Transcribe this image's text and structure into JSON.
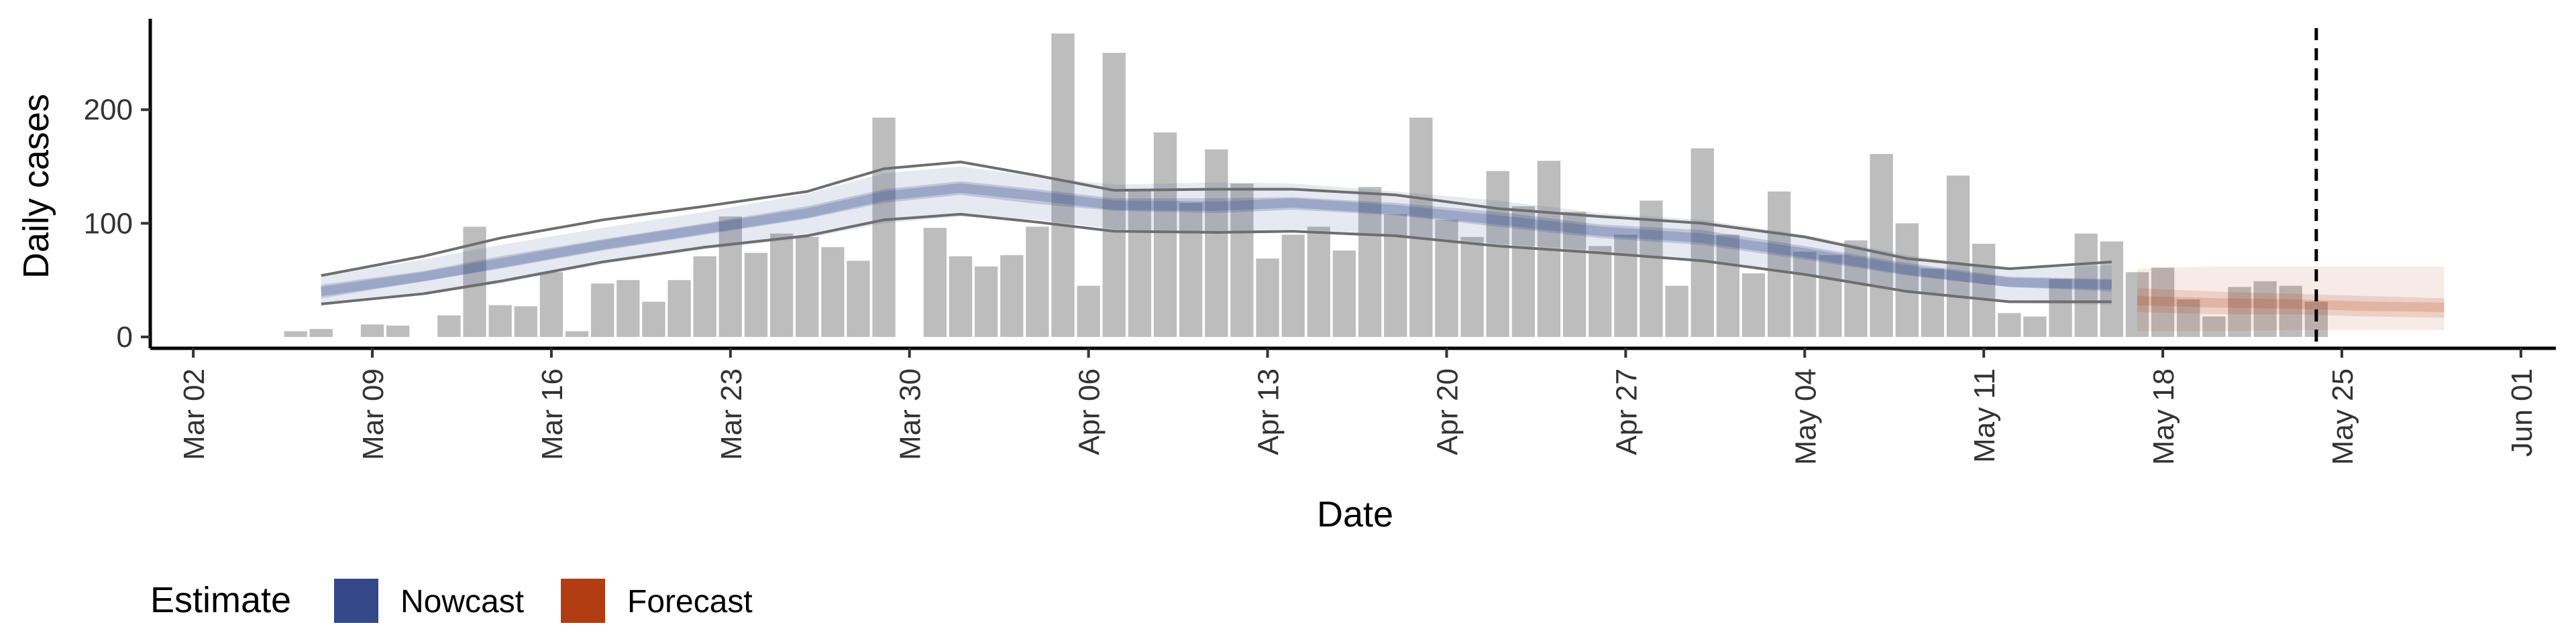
{
  "chart_data": {
    "type": "bar",
    "xlabel": "Date",
    "ylabel": "Daily cases",
    "x_axis_start": "2020-03-02",
    "xlim": [
      "2020-03-01",
      "2020-06-02"
    ],
    "ylim": [
      -10,
      280
    ],
    "x_ticks": [
      "Mar 02",
      "Mar 09",
      "Mar 16",
      "Mar 23",
      "Mar 30",
      "Apr 06",
      "Apr 13",
      "Apr 20",
      "Apr 27",
      "May 04",
      "May 11",
      "May 18",
      "May 25",
      "Jun 01"
    ],
    "y_ticks": [
      "0",
      "100",
      "200"
    ],
    "y_tick_values": [
      0,
      100,
      200
    ],
    "cutoff_date": "2020-05-24",
    "legend": {
      "title": "Estimate",
      "position": "bottom-left",
      "items": [
        {
          "label": "Nowcast",
          "color": "#35488a"
        },
        {
          "label": "Forecast",
          "color": "#b33d12"
        }
      ]
    },
    "colors": {
      "bars": "#bdbdbd",
      "nowcast": "#35488a",
      "forecast": "#b33d12",
      "reference_lines": "#6e6e6e",
      "cutoff_line": "#000000"
    },
    "bars": {
      "start_date": "2020-03-06",
      "values": [
        5,
        7,
        0,
        11,
        10,
        0,
        19,
        97,
        28,
        27,
        57,
        5,
        47,
        50,
        31,
        50,
        71,
        106,
        74,
        91,
        88,
        79,
        67,
        193,
        0,
        96,
        71,
        62,
        72,
        97,
        267,
        45,
        250,
        130,
        180,
        118,
        165,
        135,
        69,
        90,
        97,
        76,
        132,
        108,
        193,
        103,
        88,
        146,
        115,
        155,
        110,
        80,
        90,
        120,
        45,
        166,
        90,
        56,
        128,
        75,
        72,
        85,
        161,
        100,
        60,
        142,
        82,
        21,
        18,
        51,
        91,
        84,
        57,
        61,
        33,
        18,
        44,
        49,
        45,
        31
      ]
    },
    "nowcast": {
      "start_date": "2020-03-07",
      "x": [
        "2020-03-07",
        "2020-03-11",
        "2020-03-14",
        "2020-03-18",
        "2020-03-22",
        "2020-03-26",
        "2020-03-29",
        "2020-04-01",
        "2020-04-04",
        "2020-04-07",
        "2020-04-11",
        "2020-04-14",
        "2020-04-18",
        "2020-04-22",
        "2020-04-26",
        "2020-04-30",
        "2020-05-04",
        "2020-05-08",
        "2020-05-12",
        "2020-05-16"
      ],
      "outer_lower": [
        28,
        37,
        47,
        64,
        77,
        87,
        100,
        106,
        103,
        95,
        92,
        95,
        90,
        82,
        76,
        67,
        55,
        40,
        30,
        28
      ],
      "outer_upper": [
        54,
        68,
        81,
        96,
        110,
        126,
        144,
        150,
        141,
        134,
        136,
        135,
        128,
        120,
        109,
        103,
        90,
        72,
        60,
        63
      ],
      "inner_lower": [
        34,
        49,
        60,
        76,
        90,
        104,
        118,
        125,
        117,
        111,
        109,
        112,
        107,
        97,
        87,
        81,
        68,
        54,
        44,
        40
      ],
      "inner_upper": [
        46,
        58,
        71,
        86,
        100,
        115,
        130,
        137,
        130,
        122,
        122,
        123,
        118,
        110,
        99,
        94,
        80,
        65,
        53,
        51
      ],
      "median": [
        40,
        53,
        65,
        81,
        95,
        109,
        124,
        131,
        124,
        116,
        115,
        118,
        112,
        103,
        93,
        87,
        74,
        59,
        48,
        46
      ],
      "lower_line": [
        29,
        38,
        49,
        66,
        79,
        89,
        103,
        108,
        101,
        93,
        92,
        93,
        89,
        80,
        74,
        67,
        55,
        40,
        31,
        31
      ],
      "upper_line": [
        54,
        71,
        87,
        103,
        115,
        128,
        148,
        154,
        142,
        129,
        130,
        130,
        125,
        113,
        106,
        100,
        88,
        69,
        60,
        66
      ]
    },
    "forecast": {
      "x": [
        "2020-05-17",
        "2020-05-20",
        "2020-05-23",
        "2020-05-26",
        "2020-05-29"
      ],
      "outer_lower": [
        5,
        5,
        6,
        6,
        6
      ],
      "outer_upper": [
        60,
        62,
        62,
        62,
        62
      ],
      "inner_lower": [
        22,
        20,
        20,
        18,
        17
      ],
      "inner_upper": [
        43,
        40,
        38,
        36,
        34
      ],
      "median": [
        32,
        30,
        29,
        27,
        26
      ]
    }
  }
}
